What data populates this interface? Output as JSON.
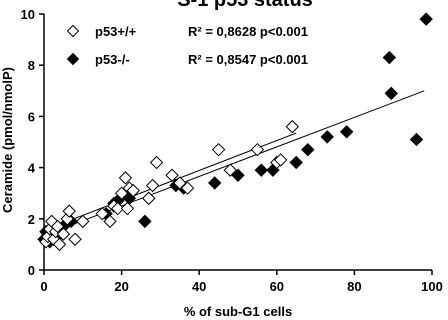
{
  "chart_data": {
    "type": "scatter",
    "title": "S-1 p53 status",
    "xlabel": "% of sub-G1 cells",
    "ylabel": "Ceramide (pmol/nmolP)",
    "xlim": [
      0,
      100
    ],
    "ylim": [
      0,
      10
    ],
    "x_ticks": [
      0,
      20,
      40,
      60,
      80,
      100
    ],
    "y_ticks": [
      0,
      2,
      4,
      6,
      8,
      10
    ],
    "x_tick_labels": [
      "0",
      "20",
      "40",
      "60",
      "80",
      "100"
    ],
    "y_tick_labels": [
      "0",
      "2",
      "4",
      "6",
      "8",
      "10"
    ],
    "grid": false,
    "legend_position": "top-left",
    "series": [
      {
        "name": "p53+/+",
        "marker": "diamond-open",
        "color": "#000000",
        "stats": "R² = 0,8628 p<0.001",
        "fit": {
          "x0": 0,
          "y0": 1.55,
          "x1": 65,
          "y1": 5.35
        },
        "points": [
          [
            0.5,
            1.1
          ],
          [
            1,
            1.3
          ],
          [
            1.5,
            1.6
          ],
          [
            2,
            1.9
          ],
          [
            2.5,
            1.2
          ],
          [
            3,
            1.5
          ],
          [
            3.5,
            1.7
          ],
          [
            4,
            1.0
          ],
          [
            5,
            1.4
          ],
          [
            6,
            2.0
          ],
          [
            6.5,
            2.3
          ],
          [
            8,
            1.2
          ],
          [
            10,
            1.9
          ],
          [
            15,
            2.2
          ],
          [
            17,
            1.9
          ],
          [
            18,
            2.5
          ],
          [
            19,
            2.4
          ],
          [
            20,
            3.0
          ],
          [
            21,
            3.6
          ],
          [
            21.5,
            2.4
          ],
          [
            22,
            3.2
          ],
          [
            23,
            3.1
          ],
          [
            27,
            2.8
          ],
          [
            28,
            3.3
          ],
          [
            29,
            4.2
          ],
          [
            33,
            3.7
          ],
          [
            35,
            3.4
          ],
          [
            37,
            3.2
          ],
          [
            45,
            4.7
          ],
          [
            48,
            3.9
          ],
          [
            55,
            4.7
          ],
          [
            60,
            4.2
          ],
          [
            61,
            4.3
          ],
          [
            64,
            5.6
          ]
        ]
      },
      {
        "name": "p53-/-",
        "marker": "diamond-filled",
        "color": "#000000",
        "stats": "R² = 0,8547 p<0.001",
        "fit": {
          "x0": 0,
          "y0": 1.35,
          "x1": 98,
          "y1": 7.0
        },
        "points": [
          [
            0,
            1.2
          ],
          [
            0.5,
            1.5
          ],
          [
            1,
            1.4
          ],
          [
            1.5,
            1.1
          ],
          [
            2,
            1.6
          ],
          [
            2.5,
            1.3
          ],
          [
            3,
            1.5
          ],
          [
            4,
            1.4
          ],
          [
            5,
            1.7
          ],
          [
            7,
            1.9
          ],
          [
            16,
            2.2
          ],
          [
            18,
            2.6
          ],
          [
            19,
            2.7
          ],
          [
            22,
            2.8
          ],
          [
            26,
            1.9
          ],
          [
            27,
            2.8
          ],
          [
            34,
            3.3
          ],
          [
            36,
            3.2
          ],
          [
            44,
            3.4
          ],
          [
            50,
            3.7
          ],
          [
            56,
            3.9
          ],
          [
            59,
            3.9
          ],
          [
            65,
            4.2
          ],
          [
            68,
            4.7
          ],
          [
            73,
            5.2
          ],
          [
            78,
            5.4
          ],
          [
            89,
            8.3
          ],
          [
            89.5,
            6.9
          ],
          [
            96,
            5.1
          ],
          [
            98.5,
            9.8
          ]
        ]
      }
    ]
  }
}
